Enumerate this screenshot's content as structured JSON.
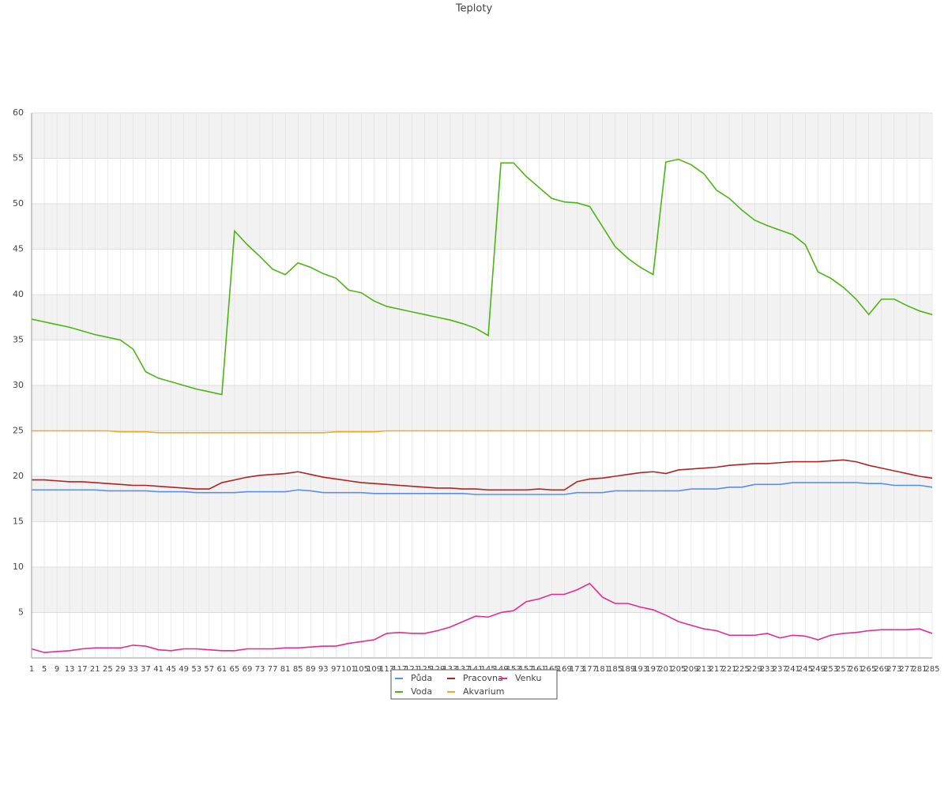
{
  "chart_data": {
    "type": "line",
    "title": "Teploty",
    "categories": [
      "1",
      "5",
      "9",
      "13",
      "17",
      "21",
      "25",
      "29",
      "33",
      "37",
      "41",
      "45",
      "49",
      "53",
      "57",
      "61",
      "65",
      "69",
      "73",
      "77",
      "81",
      "85",
      "89",
      "93",
      "97",
      "101",
      "105",
      "109",
      "113",
      "117",
      "121",
      "125",
      "129",
      "133",
      "137",
      "141",
      "145",
      "149",
      "153",
      "157",
      "161",
      "165",
      "169",
      "173",
      "177",
      "181",
      "185",
      "189",
      "193",
      "197",
      "201",
      "205",
      "209",
      "213",
      "217",
      "221",
      "225",
      "229",
      "233",
      "237",
      "241",
      "245",
      "249",
      "253",
      "257",
      "261",
      "265",
      "269",
      "273",
      "277",
      "281",
      "285"
    ],
    "ylim": [
      0,
      60
    ],
    "yticks": [
      5,
      10,
      15,
      20,
      25,
      30,
      35,
      40,
      45,
      50,
      55,
      60
    ],
    "grid": true,
    "series": [
      {
        "name": "Půda",
        "color": "#5b8def",
        "values": [
          18.5,
          18.5,
          18.5,
          18.5,
          18.5,
          18.5,
          18.4,
          18.4,
          18.4,
          18.4,
          18.3,
          18.3,
          18.3,
          18.2,
          18.2,
          18.2,
          18.2,
          18.3,
          18.3,
          18.3,
          18.3,
          18.5,
          18.4,
          18.2,
          18.2,
          18.2,
          18.2,
          18.1,
          18.1,
          18.1,
          18.1,
          18.1,
          18.1,
          18.1,
          18.1,
          18,
          18,
          18,
          18,
          18,
          18,
          18,
          18,
          18.2,
          18.2,
          18.2,
          18.4,
          18.4,
          18.4,
          18.4,
          18.4,
          18.4,
          18.6,
          18.6,
          18.6,
          18.8,
          18.8,
          19.1,
          19.1,
          19.1,
          19.3,
          19.3,
          19.3,
          19.3,
          19.3,
          19.3,
          19.2,
          19.2,
          19,
          19,
          19,
          18.8
        ]
      },
      {
        "name": "Voda",
        "color": "#4cb514",
        "values": [
          37.3,
          37,
          36.7,
          36.4,
          36,
          35.6,
          35.3,
          35,
          34,
          31.5,
          30.8,
          30.4,
          30,
          29.6,
          29.3,
          29,
          47,
          45.5,
          44.2,
          42.8,
          42.2,
          43.5,
          43,
          42.3,
          41.8,
          40.5,
          40.2,
          39.3,
          38.7,
          38.4,
          38.1,
          37.8,
          37.5,
          37.2,
          36.8,
          36.3,
          35.5,
          54.5,
          54.5,
          53,
          51.8,
          50.6,
          50.2,
          50.1,
          49.7,
          47.5,
          45.3,
          44,
          43,
          42.2,
          54.6,
          54.9,
          54.3,
          53.3,
          51.5,
          50.6,
          49.3,
          48.2,
          47.6,
          47.1,
          46.6,
          45.5,
          42.5,
          41.8,
          40.8,
          39.5,
          37.8,
          39.5,
          39.5,
          38.8,
          38.2,
          37.8
        ]
      },
      {
        "name": "Pracovna",
        "color": "#b22222",
        "values": [
          19.6,
          19.6,
          19.5,
          19.4,
          19.4,
          19.3,
          19.2,
          19.1,
          19,
          19,
          18.9,
          18.8,
          18.7,
          18.6,
          18.6,
          19.3,
          19.6,
          19.9,
          20.1,
          20.2,
          20.3,
          20.5,
          20.2,
          19.9,
          19.7,
          19.5,
          19.3,
          19.2,
          19.1,
          19,
          18.9,
          18.8,
          18.7,
          18.7,
          18.6,
          18.6,
          18.5,
          18.5,
          18.5,
          18.5,
          18.6,
          18.5,
          18.5,
          19.4,
          19.7,
          19.8,
          20,
          20.2,
          20.4,
          20.5,
          20.3,
          20.7,
          20.8,
          20.9,
          21,
          21.2,
          21.3,
          21.4,
          21.4,
          21.5,
          21.6,
          21.6,
          21.6,
          21.7,
          21.8,
          21.6,
          21.2,
          20.9,
          20.6,
          20.3,
          20,
          19.8
        ]
      },
      {
        "name": "Akvarium",
        "color": "#f5a623",
        "values": [
          25,
          25,
          25,
          25,
          25,
          25,
          25,
          24.9,
          24.9,
          24.9,
          24.8,
          24.8,
          24.8,
          24.8,
          24.8,
          24.8,
          24.8,
          24.8,
          24.8,
          24.8,
          24.8,
          24.8,
          24.8,
          24.8,
          24.9,
          24.9,
          24.9,
          24.9,
          25,
          25,
          25,
          25,
          25,
          25,
          25,
          25,
          25,
          25,
          25,
          25,
          25,
          25,
          25,
          25,
          25,
          25,
          25,
          25,
          25,
          25,
          25,
          25,
          25,
          25,
          25,
          25,
          25,
          25,
          25,
          25,
          25,
          25,
          25,
          25,
          25,
          25,
          25,
          25,
          25,
          25,
          25,
          25
        ]
      },
      {
        "name": "Venku",
        "color": "#e8288f",
        "values": [
          1,
          0.6,
          0.7,
          0.8,
          1,
          1.1,
          1.1,
          1.1,
          1.4,
          1.3,
          0.9,
          0.8,
          1,
          1,
          0.9,
          0.8,
          0.8,
          1,
          1,
          1,
          1.1,
          1.1,
          1.2,
          1.3,
          1.3,
          1.6,
          1.8,
          2,
          2.7,
          2.8,
          2.7,
          2.7,
          3,
          3.4,
          4,
          4.6,
          4.5,
          5,
          5.2,
          6.2,
          6.5,
          7,
          7,
          7.5,
          8.2,
          6.7,
          6,
          6,
          5.6,
          5.3,
          4.7,
          4,
          3.6,
          3.2,
          3,
          2.5,
          2.5,
          2.5,
          2.7,
          2.2,
          2.5,
          2.4,
          2,
          2.5,
          2.7,
          2.8,
          3,
          3.1,
          3.1,
          3.1,
          3.2,
          2.7
        ]
      }
    ]
  }
}
